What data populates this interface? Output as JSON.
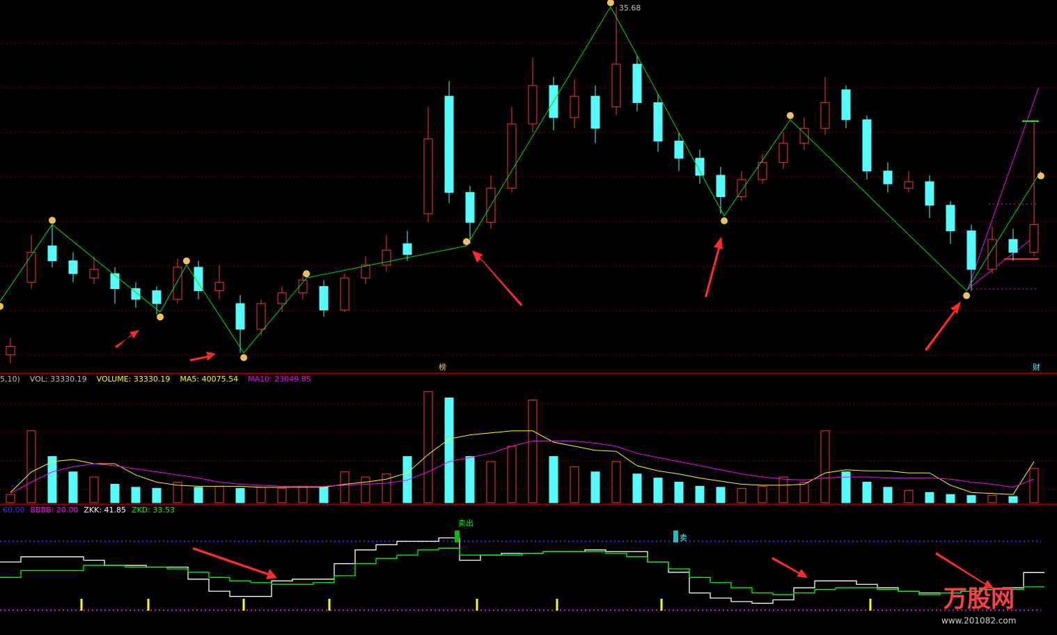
{
  "chart_data": [
    {
      "type": "candlestick",
      "open": [
        19.4,
        22.8,
        24.5,
        23.8,
        23.0,
        23.2,
        22.5,
        22.4,
        22.0,
        23.5,
        22.4,
        21.8,
        20.6,
        21.8,
        22.3,
        22.6,
        21.5,
        23.0,
        23.6,
        24.6,
        26.0,
        31.5,
        27.0,
        25.6,
        27.2,
        30.2,
        32.0,
        30.5,
        31.5,
        31.0,
        33.0,
        31.2,
        29.4,
        28.6,
        27.8,
        26.8,
        27.6,
        28.4,
        29.3,
        30.0,
        31.8,
        30.4,
        28.0,
        27.2,
        27.5,
        26.4,
        25.2,
        23.4,
        24.8,
        24.2
      ],
      "high": [
        20.2,
        25.0,
        25.5,
        24.2,
        24.0,
        23.5,
        22.8,
        22.6,
        23.9,
        23.8,
        23.6,
        22.2,
        22.0,
        22.6,
        23.2,
        22.9,
        23.2,
        24.0,
        25.0,
        25.2,
        31.0,
        32.2,
        27.3,
        27.8,
        31.0,
        33.3,
        32.4,
        32.3,
        32.0,
        35.68,
        33.4,
        31.6,
        29.8,
        29.0,
        28.2,
        28.0,
        28.8,
        29.8,
        30.5,
        32.4,
        32.0,
        30.6,
        28.4,
        28.0,
        27.8,
        26.6,
        25.5,
        25.4,
        25.3,
        30.4
      ],
      "low": [
        19.0,
        22.5,
        23.5,
        22.8,
        22.7,
        21.8,
        21.6,
        21.3,
        21.8,
        22.0,
        22.0,
        19.5,
        20.3,
        21.4,
        22.0,
        21.2,
        21.4,
        22.7,
        23.3,
        23.8,
        25.6,
        26.5,
        24.6,
        25.3,
        27.0,
        29.8,
        29.9,
        30.0,
        29.3,
        30.6,
        30.8,
        28.9,
        28.0,
        27.4,
        26.0,
        26.6,
        27.4,
        28.1,
        29.0,
        29.7,
        30.0,
        27.6,
        27.0,
        27.0,
        25.8,
        24.6,
        22.4,
        23.2,
        23.8,
        24.0
      ],
      "close": [
        19.8,
        24.2,
        23.8,
        23.2,
        23.4,
        22.5,
        22.0,
        21.8,
        23.5,
        22.4,
        22.8,
        20.6,
        21.8,
        22.3,
        22.9,
        21.5,
        23.0,
        23.6,
        24.3,
        24.1,
        29.5,
        27.0,
        25.6,
        27.2,
        30.2,
        32.0,
        30.5,
        31.5,
        30.0,
        33.0,
        31.2,
        29.4,
        28.6,
        27.8,
        26.8,
        27.6,
        28.4,
        29.3,
        30.0,
        31.2,
        30.4,
        28.0,
        27.4,
        27.5,
        26.4,
        25.2,
        23.4,
        24.8,
        24.2,
        25.5
      ],
      "up_color": "#ff3232",
      "down_color": "#54fcfc",
      "ylim": [
        19,
        36
      ],
      "zigzag": {
        "color": "#00e000",
        "x": [
          -0.5,
          2,
          7.17,
          8.43,
          11.17,
          14.17,
          21.83,
          28.73,
          34.17,
          37.33,
          45.77,
          49.33
        ],
        "values": [
          21.9,
          25.5,
          21.4,
          23.6,
          19.5,
          23.0,
          24.5,
          35.68,
          25.9,
          30.4,
          22.4,
          28.0
        ]
      },
      "high_label_index": 7,
      "markers": [
        "榜",
        "财"
      ]
    },
    {
      "type": "volume",
      "header": [
        "5,10)",
        "VOL: 33330.19",
        "VOLUME: 33330.19",
        "MA5: 40075.54",
        "MA10: 23049.85"
      ],
      "header_colors": [
        "#c0c0c0",
        "#c0c0c0",
        "#ffff00",
        "#ffff00",
        "#ff00ff"
      ],
      "values": [
        8000,
        70000,
        45000,
        30000,
        25000,
        18000,
        15000,
        14000,
        20000,
        15000,
        16000,
        14000,
        15000,
        14000,
        16000,
        15000,
        30000,
        25000,
        28000,
        45000,
        108000,
        102000,
        45000,
        40000,
        55000,
        100000,
        45000,
        35000,
        30000,
        40000,
        28000,
        24000,
        20000,
        16000,
        15000,
        14000,
        16000,
        25000,
        20000,
        70000,
        30000,
        20000,
        15000,
        12000,
        10000,
        8000,
        7000,
        7000,
        6000,
        33330.19
      ],
      "series": [
        {
          "name": "MA5",
          "color": "#ffff00",
          "values": [
            10000,
            30000,
            40000,
            42000,
            38000,
            38000,
            27000,
            20000,
            17000,
            16000,
            16000,
            16000,
            15000,
            15000,
            15000,
            15000,
            18000,
            20000,
            23000,
            29000,
            47000,
            62000,
            66000,
            68000,
            70000,
            70000,
            59000,
            55000,
            51000,
            50000,
            36000,
            31000,
            28000,
            24000,
            21000,
            18000,
            17000,
            17000,
            18000,
            29000,
            32000,
            31000,
            31000,
            29000,
            29000,
            17000,
            10000,
            9000,
            8000,
            40075.54
          ]
        },
        {
          "name": "MA10",
          "color": "#ff00ff",
          "values": [
            9000,
            20000,
            30000,
            35000,
            38000,
            36000,
            33000,
            30000,
            27000,
            24000,
            20000,
            18000,
            17000,
            16000,
            16000,
            16000,
            17000,
            18000,
            19000,
            22000,
            30000,
            40000,
            44000,
            48000,
            55000,
            60000,
            60000,
            60000,
            58000,
            55000,
            48000,
            44000,
            40000,
            36000,
            32000,
            28000,
            25000,
            23000,
            22000,
            24000,
            25000,
            25000,
            24000,
            24000,
            24000,
            23000,
            20000,
            18000,
            15000,
            23049.85
          ]
        }
      ],
      "ylim": [
        0,
        120000
      ]
    },
    {
      "type": "line",
      "header": [
        "60.00",
        "BBBB: 20.00",
        "ZKK: 41.85",
        "ZKD: 33.53"
      ],
      "header_colors": [
        "#3030ff",
        "#ff00ff",
        "#ffffff",
        "#00ff00"
      ],
      "reference_lines": [
        {
          "value": 60,
          "color": "#3030ff"
        },
        {
          "value": 20,
          "color": "#ff00ff"
        }
      ],
      "series": [
        {
          "name": "ZKK",
          "color": "#ffffff",
          "values": [
            48,
            51,
            51,
            51,
            49,
            46,
            46,
            45,
            45,
            38,
            31,
            28,
            28,
            37,
            38,
            38,
            47,
            55,
            58,
            60,
            60,
            62,
            49,
            52,
            53,
            53,
            54,
            54,
            55,
            54,
            54,
            48,
            42,
            30,
            27,
            25,
            24,
            26,
            33,
            37,
            37,
            35,
            33,
            31,
            30,
            30,
            31,
            32,
            33,
            41.85
          ]
        },
        {
          "name": "ZKD",
          "color": "#00ff00",
          "values": [
            39,
            43,
            43,
            43,
            46,
            46,
            45,
            45,
            44,
            42,
            39,
            37,
            36,
            35,
            35,
            36,
            40,
            47,
            50,
            52,
            55,
            56,
            52,
            52,
            52,
            53,
            54,
            54,
            54,
            53,
            51,
            48,
            44,
            39,
            36,
            33,
            30,
            29,
            30,
            32,
            33,
            33,
            32,
            31,
            29,
            30,
            31,
            32,
            32,
            33.53
          ]
        }
      ],
      "signals": [
        "卖出",
        "卖"
      ],
      "ylim": [
        8,
        80
      ]
    }
  ],
  "watermark": [
    "万股网",
    "www.201082.com"
  ]
}
